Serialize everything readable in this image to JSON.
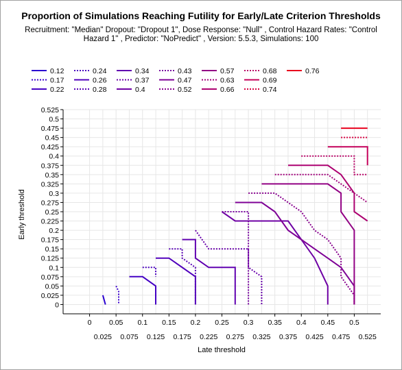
{
  "chart_data": {
    "type": "line",
    "title": "Proportion of Simulations Reaching Futility for Early/Late Criterion Thresholds",
    "subtitle": "Recruitment: \"Median\" Dropout: \"Dropout 1\", Dose Response: \"Null\" , Control Hazard Rates: \"Control Hazard 1\" , Predictor: \"NoPredict\" , Version: 5.5.3, Simulations: 100",
    "xlabel": "Late threshold",
    "ylabel": "Early threshold",
    "xlim": [
      -0.05,
      0.55
    ],
    "ylim": [
      -0.025,
      0.525
    ],
    "x_ticks_upper": [
      "0",
      "0.05",
      "0.1",
      "0.15",
      "0.2",
      "0.25",
      "0.3",
      "0.35",
      "0.4",
      "0.45",
      "0.5"
    ],
    "x_ticks_lower": [
      "0.025",
      "0.075",
      "0.125",
      "0.175",
      "0.225",
      "0.275",
      "0.325",
      "0.375",
      "0.425",
      "0.475",
      "0.525"
    ],
    "y_ticks": [
      "0",
      "0.025",
      "0.05",
      "0.075",
      "0.1",
      "0.125",
      "0.15",
      "0.175",
      "0.2",
      "0.225",
      "0.25",
      "0.275",
      "0.3",
      "0.325",
      "0.35",
      "0.375",
      "0.4",
      "0.425",
      "0.45",
      "0.475",
      "0.5",
      "0.525"
    ],
    "grid": true,
    "legend_position": "top",
    "series": [
      {
        "name": "0.12",
        "color": "#2a00d0",
        "dash": "solid",
        "points": [
          [
            0.025,
            0.025
          ],
          [
            0.03,
            0.0
          ]
        ]
      },
      {
        "name": "0.17",
        "color": "#3a00cc",
        "dash": "dotted",
        "points": [
          [
            0.05,
            0.05
          ],
          [
            0.055,
            0.035
          ],
          [
            0.055,
            0.0
          ]
        ]
      },
      {
        "name": "0.22",
        "color": "#4400c4",
        "dash": "solid",
        "points": [
          [
            0.075,
            0.075
          ],
          [
            0.1,
            0.075
          ],
          [
            0.125,
            0.05
          ],
          [
            0.125,
            0.0
          ]
        ]
      },
      {
        "name": "0.24",
        "color": "#4a00c0",
        "dash": "dotted",
        "points": [
          [
            0.1,
            0.1
          ],
          [
            0.125,
            0.1
          ],
          [
            0.125,
            0.075
          ]
        ]
      },
      {
        "name": "0.26",
        "color": "#5000bc",
        "dash": "solid",
        "points": [
          [
            0.125,
            0.125
          ],
          [
            0.15,
            0.125
          ],
          [
            0.2,
            0.075
          ],
          [
            0.2,
            0.0
          ]
        ]
      },
      {
        "name": "0.28",
        "color": "#5800b6",
        "dash": "dotted",
        "points": [
          [
            0.15,
            0.15
          ],
          [
            0.175,
            0.15
          ],
          [
            0.175,
            0.125
          ],
          [
            0.2,
            0.1
          ],
          [
            0.2,
            0.0
          ]
        ]
      },
      {
        "name": "0.34",
        "color": "#6000b0",
        "dash": "solid",
        "points": [
          [
            0.175,
            0.175
          ],
          [
            0.2,
            0.175
          ],
          [
            0.2,
            0.125
          ],
          [
            0.225,
            0.1
          ],
          [
            0.275,
            0.1
          ],
          [
            0.275,
            0.0
          ]
        ]
      },
      {
        "name": "0.37",
        "color": "#6800aa",
        "dash": "dotted",
        "points": [
          [
            0.2,
            0.2
          ],
          [
            0.225,
            0.15
          ],
          [
            0.3,
            0.15
          ],
          [
            0.3,
            0.1
          ],
          [
            0.325,
            0.075
          ],
          [
            0.325,
            0.0
          ]
        ]
      },
      {
        "name": "0.4",
        "color": "#6e00a4",
        "dash": "solid",
        "points": [
          [
            0.25,
            0.25
          ],
          [
            0.275,
            0.225
          ],
          [
            0.375,
            0.225
          ],
          [
            0.425,
            0.125
          ],
          [
            0.45,
            0.05
          ],
          [
            0.45,
            0.0
          ]
        ]
      },
      {
        "name": "0.43",
        "color": "#76009e",
        "dash": "dotted",
        "points": [
          [
            0.25,
            0.25
          ],
          [
            0.3,
            0.25
          ],
          [
            0.3,
            0.0
          ]
        ]
      },
      {
        "name": "0.47",
        "color": "#7e0096",
        "dash": "solid",
        "points": [
          [
            0.275,
            0.275
          ],
          [
            0.325,
            0.275
          ],
          [
            0.35,
            0.25
          ],
          [
            0.375,
            0.2
          ],
          [
            0.425,
            0.15
          ],
          [
            0.45,
            0.125
          ],
          [
            0.475,
            0.1
          ],
          [
            0.5,
            0.05
          ],
          [
            0.5,
            0.0
          ]
        ]
      },
      {
        "name": "0.52",
        "color": "#88008e",
        "dash": "dotted",
        "points": [
          [
            0.3,
            0.3
          ],
          [
            0.35,
            0.3
          ],
          [
            0.375,
            0.275
          ],
          [
            0.4,
            0.25
          ],
          [
            0.425,
            0.2
          ],
          [
            0.45,
            0.175
          ],
          [
            0.475,
            0.125
          ],
          [
            0.475,
            0.075
          ],
          [
            0.5,
            0.025
          ],
          [
            0.5,
            0.0
          ]
        ]
      },
      {
        "name": "0.57",
        "color": "#920084",
        "dash": "solid",
        "points": [
          [
            0.325,
            0.325
          ],
          [
            0.45,
            0.325
          ],
          [
            0.475,
            0.3
          ],
          [
            0.475,
            0.25
          ],
          [
            0.5,
            0.2
          ],
          [
            0.5,
            0.125
          ],
          [
            0.5,
            0.075
          ],
          [
            0.5,
            0.0
          ]
        ]
      },
      {
        "name": "0.63",
        "color": "#a0007a",
        "dash": "dotted",
        "points": [
          [
            0.35,
            0.35
          ],
          [
            0.45,
            0.35
          ],
          [
            0.475,
            0.325
          ],
          [
            0.5,
            0.3
          ],
          [
            0.525,
            0.275
          ]
        ]
      },
      {
        "name": "0.66",
        "color": "#ac0070",
        "dash": "solid",
        "points": [
          [
            0.375,
            0.375
          ],
          [
            0.45,
            0.375
          ],
          [
            0.475,
            0.35
          ],
          [
            0.5,
            0.3
          ],
          [
            0.5,
            0.25
          ],
          [
            0.525,
            0.225
          ]
        ]
      },
      {
        "name": "0.68",
        "color": "#b80066",
        "dash": "dotted",
        "points": [
          [
            0.4,
            0.4
          ],
          [
            0.5,
            0.4
          ],
          [
            0.5,
            0.35
          ],
          [
            0.525,
            0.35
          ]
        ]
      },
      {
        "name": "0.69",
        "color": "#c4005a",
        "dash": "solid",
        "points": [
          [
            0.45,
            0.425
          ],
          [
            0.525,
            0.425
          ],
          [
            0.525,
            0.375
          ]
        ]
      },
      {
        "name": "0.74",
        "color": "#d60040",
        "dash": "dotted",
        "points": [
          [
            0.475,
            0.45
          ],
          [
            0.525,
            0.45
          ]
        ]
      },
      {
        "name": "0.76",
        "color": "#e8001c",
        "dash": "solid",
        "points": [
          [
            0.475,
            0.475
          ],
          [
            0.525,
            0.475
          ]
        ]
      }
    ]
  }
}
